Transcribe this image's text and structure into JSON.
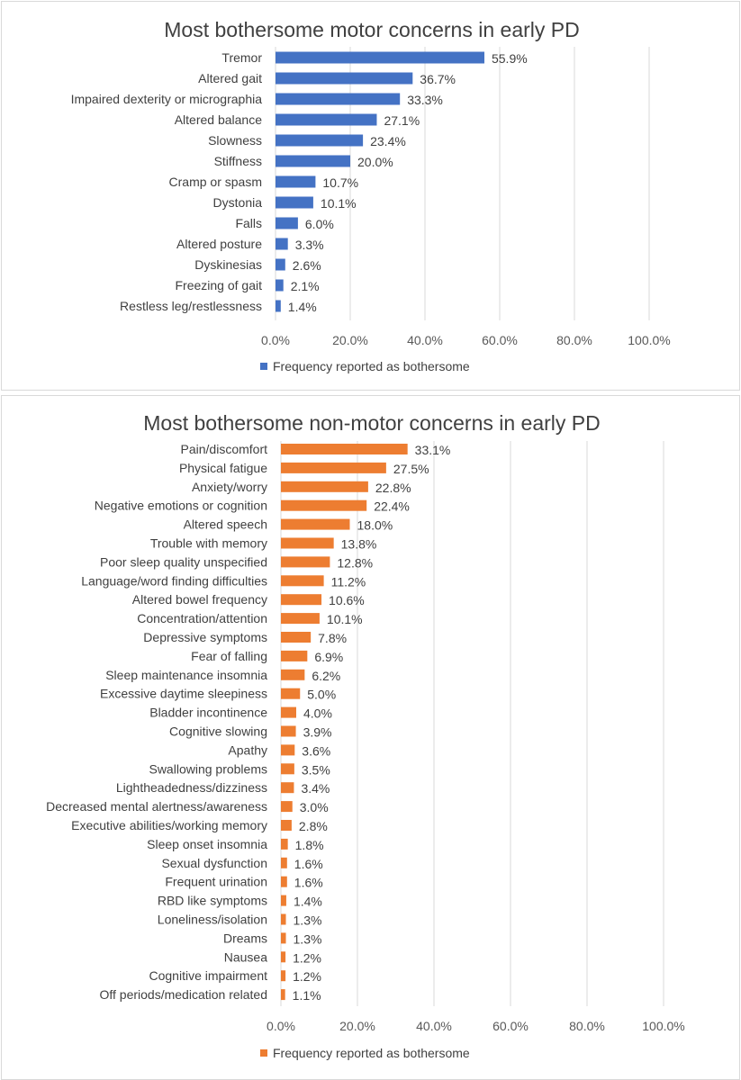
{
  "chart_data": [
    {
      "type": "bar",
      "orientation": "horizontal",
      "title": "Most bothersome motor concerns in early PD",
      "categories": [
        "Tremor",
        "Altered gait",
        "Impaired dexterity or micrographia",
        "Altered balance",
        "Slowness",
        "Stiffness",
        "Cramp or spasm",
        "Dystonia",
        "Falls",
        "Altered posture",
        "Dyskinesias",
        "Freezing of gait",
        "Restless leg/restlessness"
      ],
      "value_labels": [
        "55.9%",
        "36.7%",
        "33.3%",
        "27.1%",
        "23.4%",
        "20.0%",
        "10.7%",
        "10.1%",
        "6.0%",
        "3.3%",
        "2.6%",
        "2.1%",
        "1.4%"
      ],
      "series": [
        {
          "name": "Frequency reported as bothersome",
          "values": [
            55.9,
            36.7,
            33.3,
            27.1,
            23.4,
            20.0,
            10.7,
            10.1,
            6.0,
            3.3,
            2.6,
            2.1,
            1.4
          ],
          "color": "#4472c4"
        }
      ],
      "xlim": [
        0,
        100
      ],
      "x_ticks": [
        "0.0%",
        "20.0%",
        "40.0%",
        "60.0%",
        "80.0%",
        "100.0%"
      ],
      "grid": true,
      "legend_position": "bottom"
    },
    {
      "type": "bar",
      "orientation": "horizontal",
      "title": "Most bothersome non-motor concerns in early PD",
      "categories": [
        "Pain/discomfort",
        "Physical fatigue",
        "Anxiety/worry",
        "Negative emotions or cognition",
        "Altered speech",
        "Trouble with memory",
        "Poor sleep quality unspecified",
        "Language/word finding difficulties",
        "Altered bowel frequency",
        "Concentration/attention",
        "Depressive symptoms",
        "Fear of falling",
        "Sleep maintenance insomnia",
        "Excessive daytime sleepiness",
        "Bladder incontinence",
        "Cognitive slowing",
        "Apathy",
        "Swallowing problems",
        "Lightheadedness/dizziness",
        "Decreased mental alertness/awareness",
        "Executive abilities/working memory",
        "Sleep onset insomnia",
        "Sexual dysfunction",
        "Frequent urination",
        "RBD like symptoms",
        "Loneliness/isolation",
        "Dreams",
        "Nausea",
        "Cognitive impairment",
        "Off periods/medication related"
      ],
      "value_labels": [
        "33.1%",
        "27.5%",
        "22.8%",
        "22.4%",
        "18.0%",
        "13.8%",
        "12.8%",
        "11.2%",
        "10.6%",
        "10.1%",
        "7.8%",
        "6.9%",
        "6.2%",
        "5.0%",
        "4.0%",
        "3.9%",
        "3.6%",
        "3.5%",
        "3.4%",
        "3.0%",
        "2.8%",
        "1.8%",
        "1.6%",
        "1.6%",
        "1.4%",
        "1.3%",
        "1.3%",
        "1.2%",
        "1.2%",
        "1.1%"
      ],
      "series": [
        {
          "name": "Frequency reported as bothersome",
          "values": [
            33.1,
            27.5,
            22.8,
            22.4,
            18.0,
            13.8,
            12.8,
            11.2,
            10.6,
            10.1,
            7.8,
            6.9,
            6.2,
            5.0,
            4.0,
            3.9,
            3.6,
            3.5,
            3.4,
            3.0,
            2.8,
            1.8,
            1.6,
            1.6,
            1.4,
            1.3,
            1.3,
            1.2,
            1.2,
            1.1
          ],
          "color": "#ed7d31"
        }
      ],
      "xlim": [
        0,
        100
      ],
      "x_ticks": [
        "0.0%",
        "20.0%",
        "40.0%",
        "60.0%",
        "80.0%",
        "100.0%"
      ],
      "grid": true,
      "legend_position": "bottom"
    }
  ]
}
